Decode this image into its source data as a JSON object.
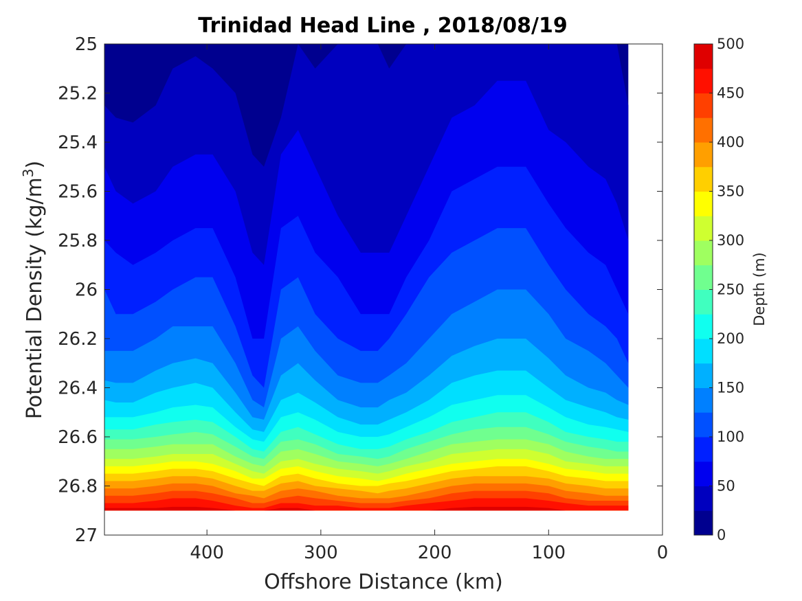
{
  "chart_data": {
    "type": "heatmap",
    "subtype": "filled-contour",
    "title": "Trinidad Head Line , 2018/08/19",
    "xlabel": "Offshore Distance (km)",
    "ylabel_main": "Potential Density (kg/m",
    "ylabel_sup": "3",
    "ylabel_close": ")",
    "x_reversed": true,
    "y_reversed": true,
    "xlim": [
      0,
      490
    ],
    "ylim": [
      25,
      27
    ],
    "xticks": [
      0,
      100,
      200,
      300,
      400
    ],
    "yticks": [
      25,
      25.2,
      25.4,
      25.6,
      25.8,
      26,
      26.2,
      26.4,
      26.6,
      26.8,
      27
    ],
    "xtick_labels": [
      "400",
      "300",
      "200",
      "100",
      "0"
    ],
    "ytick_labels": [
      "25",
      "25.2",
      "25.4",
      "25.6",
      "25.8",
      "26",
      "26.2",
      "26.4",
      "26.6",
      "26.8",
      "27"
    ],
    "colorbar": {
      "label": "Depth (m)",
      "range": [
        0,
        500
      ],
      "ticks": [
        "0",
        "50",
        "100",
        "150",
        "200",
        "250",
        "300",
        "350",
        "400",
        "450",
        "500"
      ],
      "levels": [
        0,
        25,
        50,
        75,
        100,
        125,
        150,
        175,
        200,
        225,
        250,
        275,
        300,
        325,
        350,
        375,
        400,
        425,
        450,
        475,
        500
      ],
      "colors": [
        "#00008f",
        "#0000bf",
        "#0000ef",
        "#0020ff",
        "#0050ff",
        "#0080ff",
        "#00b0ff",
        "#00dfff",
        "#10ffef",
        "#40ffbf",
        "#70ff8f",
        "#9fff60",
        "#cfff30",
        "#ffff00",
        "#ffcf00",
        "#ff9f00",
        "#ff7000",
        "#ff4000",
        "#ff1000",
        "#df0000",
        "#af0000"
      ]
    },
    "data_region": {
      "x_max": 490,
      "x_min": 30,
      "density_bottom": 26.9
    },
    "stations_x": [
      490,
      480,
      465,
      445,
      430,
      410,
      395,
      375,
      360,
      350,
      335,
      320,
      305,
      285,
      265,
      250,
      240,
      225,
      205,
      185,
      165,
      145,
      120,
      100,
      85,
      65,
      50,
      40,
      30
    ],
    "contours": [
      {
        "level": 25,
        "density": [
          25.25,
          25.3,
          25.32,
          25.25,
          25.1,
          25.05,
          25.1,
          25.2,
          25.45,
          25.5,
          25.3,
          25.0,
          25.1,
          25.0,
          25.0,
          25.0,
          25.1,
          25.0,
          25.0,
          25.0,
          25.0,
          25.0,
          25.0,
          25.0,
          25.0,
          25.0,
          25.0,
          25.0,
          25.25
        ]
      },
      {
        "level": 50,
        "density": [
          25.5,
          25.6,
          25.65,
          25.6,
          25.5,
          25.45,
          25.45,
          25.6,
          25.85,
          25.9,
          25.45,
          25.35,
          25.5,
          25.7,
          25.85,
          25.85,
          25.85,
          25.7,
          25.5,
          25.3,
          25.25,
          25.15,
          25.15,
          25.35,
          25.4,
          25.5,
          25.55,
          25.65,
          25.8
        ]
      },
      {
        "level": 75,
        "density": [
          25.8,
          25.85,
          25.9,
          25.85,
          25.8,
          25.75,
          25.75,
          25.95,
          26.2,
          26.2,
          25.75,
          25.7,
          25.85,
          25.95,
          26.1,
          26.1,
          26.1,
          25.95,
          25.8,
          25.6,
          25.55,
          25.5,
          25.5,
          25.65,
          25.75,
          25.85,
          25.9,
          26.0,
          26.1
        ]
      },
      {
        "level": 100,
        "density": [
          26.0,
          26.1,
          26.1,
          26.05,
          26.0,
          25.95,
          25.95,
          26.15,
          26.35,
          26.4,
          26.0,
          25.95,
          26.1,
          26.2,
          26.25,
          26.25,
          26.2,
          26.1,
          25.95,
          25.85,
          25.8,
          25.75,
          25.75,
          25.9,
          26.0,
          26.1,
          26.15,
          26.2,
          26.3
        ]
      },
      {
        "level": 125,
        "density": [
          26.25,
          26.25,
          26.25,
          26.2,
          26.15,
          26.15,
          26.15,
          26.3,
          26.45,
          26.48,
          26.2,
          26.15,
          26.25,
          26.35,
          26.38,
          26.38,
          26.35,
          26.3,
          26.2,
          26.1,
          26.05,
          26.0,
          26.0,
          26.1,
          26.2,
          26.25,
          26.3,
          26.35,
          26.4
        ]
      },
      {
        "level": 150,
        "density": [
          26.37,
          26.38,
          26.38,
          26.33,
          26.3,
          26.28,
          26.3,
          26.42,
          26.52,
          26.53,
          26.35,
          26.3,
          26.37,
          26.45,
          26.48,
          26.48,
          26.45,
          26.42,
          26.35,
          26.27,
          26.23,
          26.2,
          26.2,
          26.28,
          26.35,
          26.4,
          26.42,
          26.45,
          26.47
        ]
      },
      {
        "level": 175,
        "density": [
          26.45,
          26.46,
          26.46,
          26.42,
          26.4,
          26.38,
          26.4,
          26.5,
          26.57,
          26.58,
          26.45,
          26.42,
          26.46,
          26.52,
          26.55,
          26.55,
          26.53,
          26.5,
          26.45,
          26.38,
          26.35,
          26.33,
          26.33,
          26.4,
          26.45,
          26.48,
          26.5,
          26.52,
          26.53
        ]
      },
      {
        "level": 200,
        "density": [
          26.52,
          26.52,
          26.52,
          26.5,
          26.48,
          26.47,
          26.48,
          26.56,
          26.61,
          26.62,
          26.52,
          26.5,
          26.53,
          26.58,
          26.6,
          26.6,
          26.59,
          26.56,
          26.52,
          26.47,
          26.45,
          26.43,
          26.43,
          26.48,
          26.52,
          26.55,
          26.56,
          26.57,
          26.58
        ]
      },
      {
        "level": 225,
        "density": [
          26.57,
          26.57,
          26.57,
          26.55,
          26.54,
          26.53,
          26.54,
          26.6,
          26.65,
          26.66,
          26.58,
          26.56,
          26.59,
          26.63,
          26.65,
          26.65,
          26.64,
          26.61,
          26.58,
          26.54,
          26.52,
          26.5,
          26.5,
          26.54,
          26.58,
          26.6,
          26.61,
          26.62,
          26.62
        ]
      },
      {
        "level": 250,
        "density": [
          26.61,
          26.61,
          26.61,
          26.6,
          26.59,
          26.58,
          26.59,
          26.64,
          26.68,
          26.69,
          26.62,
          26.61,
          26.63,
          26.67,
          26.68,
          26.69,
          26.68,
          26.65,
          26.62,
          26.59,
          26.57,
          26.56,
          26.56,
          26.59,
          26.62,
          26.64,
          26.65,
          26.66,
          26.66
        ]
      },
      {
        "level": 275,
        "density": [
          26.65,
          26.65,
          26.65,
          26.64,
          26.63,
          26.63,
          26.63,
          26.68,
          26.71,
          26.72,
          26.66,
          26.65,
          26.67,
          26.7,
          26.71,
          26.72,
          26.71,
          26.69,
          26.66,
          26.63,
          26.62,
          26.61,
          26.61,
          26.63,
          26.66,
          26.68,
          26.69,
          26.69,
          26.69
        ]
      },
      {
        "level": 300,
        "density": [
          26.69,
          26.69,
          26.69,
          26.68,
          26.67,
          26.67,
          26.67,
          26.71,
          26.74,
          26.75,
          26.7,
          26.69,
          26.71,
          26.73,
          26.74,
          26.75,
          26.74,
          26.72,
          26.7,
          26.67,
          26.66,
          26.65,
          26.65,
          26.67,
          26.7,
          26.71,
          26.72,
          26.72,
          26.72
        ]
      },
      {
        "level": 325,
        "density": [
          26.72,
          26.72,
          26.72,
          26.71,
          26.7,
          26.7,
          26.71,
          26.74,
          26.77,
          26.77,
          26.73,
          26.72,
          26.74,
          26.76,
          26.77,
          26.78,
          26.77,
          26.75,
          26.73,
          26.71,
          26.7,
          26.69,
          26.69,
          26.71,
          26.73,
          26.74,
          26.75,
          26.75,
          26.75
        ]
      },
      {
        "level": 350,
        "density": [
          26.75,
          26.75,
          26.75,
          26.74,
          26.73,
          26.73,
          26.74,
          26.77,
          26.79,
          26.8,
          26.76,
          26.75,
          26.77,
          26.79,
          26.8,
          26.8,
          26.79,
          26.78,
          26.76,
          26.74,
          26.73,
          26.72,
          26.72,
          26.74,
          26.76,
          26.77,
          26.78,
          26.78,
          26.78
        ]
      },
      {
        "level": 375,
        "density": [
          26.78,
          26.78,
          26.78,
          26.77,
          26.76,
          26.76,
          26.77,
          26.8,
          26.82,
          26.82,
          26.79,
          26.78,
          26.8,
          26.81,
          26.82,
          26.83,
          26.82,
          26.81,
          26.79,
          26.77,
          26.76,
          26.76,
          26.76,
          26.77,
          26.79,
          26.8,
          26.81,
          26.81,
          26.81
        ]
      },
      {
        "level": 400,
        "density": [
          26.81,
          26.81,
          26.81,
          26.8,
          26.79,
          26.79,
          26.8,
          26.83,
          26.84,
          26.85,
          26.82,
          26.81,
          26.82,
          26.84,
          26.85,
          26.85,
          26.85,
          26.84,
          26.82,
          26.8,
          26.79,
          26.79,
          26.79,
          26.8,
          26.82,
          26.83,
          26.84,
          26.84,
          26.84
        ]
      },
      {
        "level": 425,
        "density": [
          26.84,
          26.84,
          26.84,
          26.83,
          26.82,
          26.82,
          26.83,
          26.85,
          26.87,
          26.87,
          26.85,
          26.84,
          26.85,
          26.86,
          26.87,
          26.87,
          26.87,
          26.86,
          26.85,
          26.83,
          26.82,
          26.82,
          26.82,
          26.83,
          26.85,
          26.86,
          26.86,
          26.86,
          26.86
        ]
      },
      {
        "level": 450,
        "density": [
          26.87,
          26.87,
          26.87,
          26.86,
          26.85,
          26.85,
          26.86,
          26.88,
          26.89,
          26.89,
          26.87,
          26.87,
          26.88,
          26.88,
          26.89,
          26.89,
          26.89,
          26.88,
          26.87,
          26.86,
          26.85,
          26.85,
          26.85,
          26.86,
          26.87,
          26.88,
          26.88,
          26.88,
          26.88
        ]
      },
      {
        "level": 475,
        "density": [
          26.89,
          26.89,
          26.89,
          26.89,
          26.885,
          26.885,
          26.89,
          26.9,
          26.9,
          26.9,
          26.89,
          26.89,
          26.9,
          26.9,
          26.9,
          26.9,
          26.9,
          26.9,
          26.9,
          26.89,
          26.885,
          26.885,
          26.885,
          26.89,
          26.9,
          26.9,
          26.9,
          26.9,
          26.9
        ]
      }
    ]
  }
}
